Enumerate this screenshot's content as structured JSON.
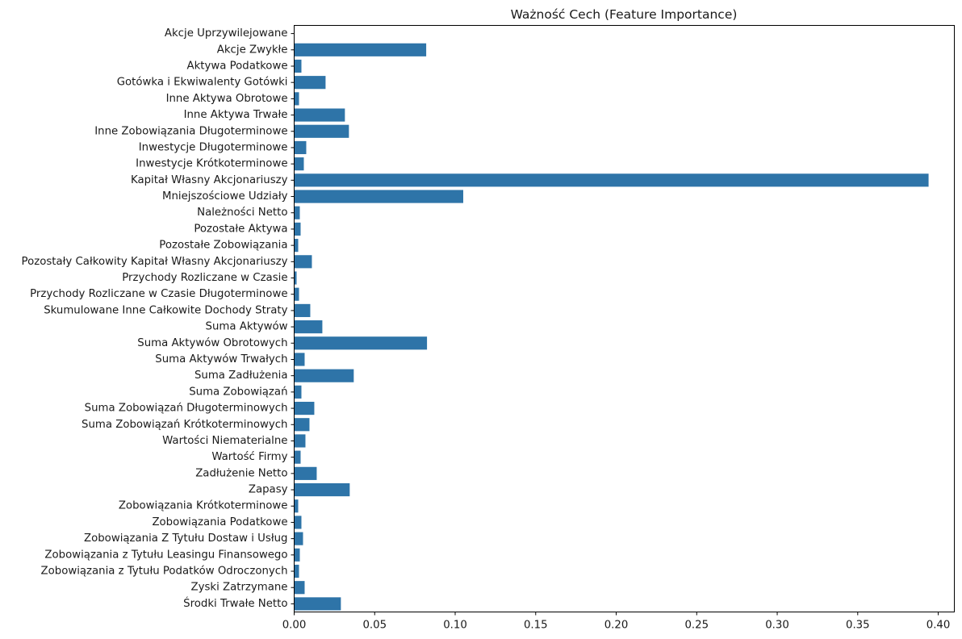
{
  "chart_data": {
    "type": "bar",
    "orientation": "horizontal",
    "title": "Ważność Cech (Feature Importance)",
    "xlabel": "",
    "ylabel": "",
    "xlim": [
      0,
      0.41
    ],
    "xticks": [
      0.0,
      0.05,
      0.1,
      0.15,
      0.2,
      0.25,
      0.3,
      0.35,
      0.4
    ],
    "xtick_labels": [
      "0.00",
      "0.05",
      "0.10",
      "0.15",
      "0.20",
      "0.25",
      "0.30",
      "0.35",
      "0.40"
    ],
    "grid": false,
    "bar_color": "#2e74a8",
    "categories": [
      "Akcje Uprzywilejowane",
      "Akcje Zwykłe",
      "Aktywa Podatkowe",
      "Gotówka i Ekwiwalenty Gotówki",
      "Inne Aktywa Obrotowe",
      "Inne Aktywa Trwałe",
      "Inne Zobowiązania Długoterminowe",
      "Inwestycje Długoterminowe",
      "Inwestycje Krótkoterminowe",
      "Kapitał Własny Akcjonariuszy",
      "Mniejszościowe Udziały",
      "Należności Netto",
      "Pozostałe Aktywa",
      "Pozostałe Zobowiązania",
      "Pozostały Całkowity Kapitał Własny Akcjonariuszy",
      "Przychody Rozliczane w Czasie",
      "Przychody Rozliczane w Czasie Długoterminowe",
      "Skumulowane Inne Całkowite Dochody Straty",
      "Suma Aktywów",
      "Suma Aktywów Obrotowych",
      "Suma Aktywów Trwałych",
      "Suma Zadłużenia",
      "Suma Zobowiązań",
      "Suma Zobowiązań Długoterminowych",
      "Suma Zobowiązań Krótkoterminowych",
      "Wartości Niematerialne",
      "Wartość Firmy",
      "Zadłużenie Netto",
      "Zapasy",
      "Zobowiązania Krótkoterminowe",
      "Zobowiązania Podatkowe",
      "Zobowiązania Z Tytułu Dostaw i Usług",
      "Zobowiązania z Tytułu Leasingu Finansowego",
      "Zobowiązania z Tytułu Podatków Odroczonych",
      "Zyski Zatrzymane",
      "Środki Trwałe Netto"
    ],
    "values": [
      0.0,
      0.082,
      0.0045,
      0.0195,
      0.003,
      0.0315,
      0.034,
      0.0075,
      0.006,
      0.394,
      0.105,
      0.0035,
      0.004,
      0.0025,
      0.011,
      0.0015,
      0.003,
      0.01,
      0.0175,
      0.0825,
      0.0065,
      0.037,
      0.0045,
      0.0125,
      0.0095,
      0.007,
      0.004,
      0.014,
      0.0345,
      0.0025,
      0.0045,
      0.0055,
      0.0035,
      0.003,
      0.0065,
      0.029
    ]
  }
}
